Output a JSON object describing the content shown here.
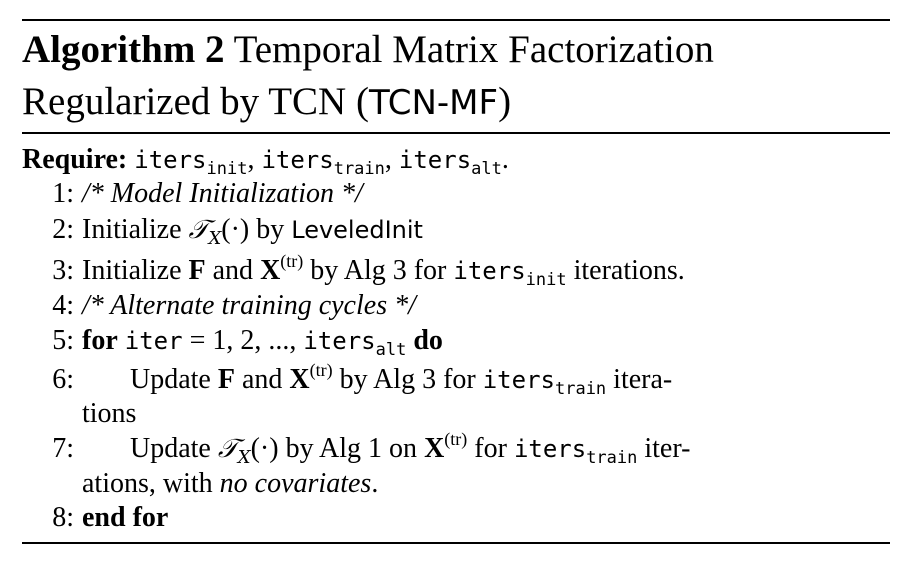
{
  "algorithm": {
    "label": "Algorithm 2",
    "title_main": "Temporal Matrix Factorization Regularized by TCN (",
    "title_abbr": "TCN-MF",
    "title_close": ")",
    "require_label": "Require:",
    "iters": "iters",
    "sub_init": "init",
    "sub_train": "train",
    "sub_alt": "alt",
    "sep": ",",
    "end_period": ".",
    "steps": [
      {
        "num": "1:",
        "text": "/* Model Initialization */"
      },
      {
        "num": "2:",
        "pre": "Initialize",
        "T": "𝒯",
        "Tsub": "X",
        "arg": "(·)",
        "by": "by",
        "method": "LeveledInit"
      },
      {
        "num": "3:",
        "pre": "Initialize",
        "F": "F",
        "and": "and",
        "X": "X",
        "sup": "(tr)",
        "mid": "by Alg 3 for",
        "post": "iterations."
      },
      {
        "num": "4:",
        "text": "/* Alternate training cycles */"
      },
      {
        "num": "5:",
        "for": "for",
        "var": "iter",
        "eq": "= 1, 2, ...,",
        "do": "do"
      },
      {
        "num": "6:",
        "pre": "Update",
        "F": "F",
        "and": "and",
        "X": "X",
        "sup": "(tr)",
        "mid": "by Alg 3 for",
        "post": "itera-",
        "cont": "tions"
      },
      {
        "num": "7:",
        "pre": "Update",
        "T": "𝒯",
        "Tsub": "X",
        "arg": "(·)",
        "mid1": "by Alg 1 on",
        "X": "X",
        "sup": "(tr)",
        "mid2": "for",
        "post": "iter-",
        "cont1": "ations, with",
        "cont2": "no covariates",
        "cont3": "."
      },
      {
        "num": "8:",
        "text": "end for"
      }
    ]
  }
}
